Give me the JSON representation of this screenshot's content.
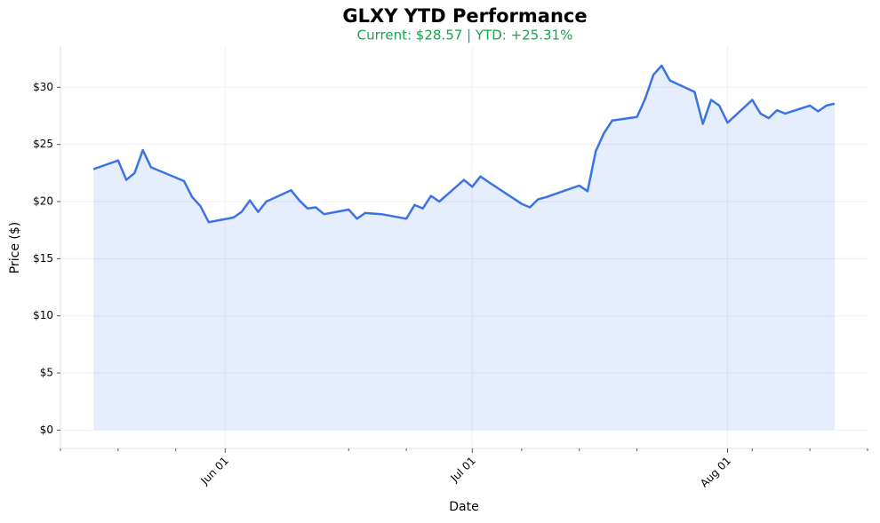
{
  "chart_data": {
    "type": "line",
    "title": "GLXY YTD Performance",
    "subtitle": "Current: $28.57  |  YTD: +25.31%",
    "x_label": "Date",
    "y_label": "Price ($)",
    "x": [
      "05-16",
      "05-19",
      "05-20",
      "05-21",
      "05-22",
      "05-23",
      "05-27",
      "05-28",
      "05-29",
      "05-30",
      "06-02",
      "06-03",
      "06-04",
      "06-05",
      "06-06",
      "06-09",
      "06-10",
      "06-11",
      "06-12",
      "06-13",
      "06-16",
      "06-17",
      "06-18",
      "06-20",
      "06-23",
      "06-24",
      "06-25",
      "06-26",
      "06-27",
      "06-30",
      "07-01",
      "07-02",
      "07-03",
      "07-07",
      "07-08",
      "07-09",
      "07-10",
      "07-14",
      "07-15",
      "07-16",
      "07-17",
      "07-18",
      "07-21",
      "07-22",
      "07-23",
      "07-24",
      "07-25",
      "07-28",
      "07-29",
      "07-30",
      "07-31",
      "08-01",
      "08-04",
      "08-05",
      "08-06",
      "08-07",
      "08-08",
      "08-11",
      "08-12",
      "08-13",
      "08-14"
    ],
    "series": [
      {
        "name": "GLXY",
        "color": "#3b73e6",
        "values": [
          22.84,
          23.6,
          21.9,
          22.5,
          24.5,
          23.0,
          21.8,
          20.4,
          19.6,
          18.2,
          18.6,
          19.1,
          20.1,
          19.1,
          20.0,
          21.0,
          20.1,
          19.4,
          19.5,
          18.9,
          19.3,
          18.5,
          19.0,
          18.9,
          18.5,
          19.7,
          19.4,
          20.5,
          20.0,
          21.9,
          21.3,
          22.2,
          21.7,
          19.8,
          19.5,
          20.2,
          20.4,
          21.4,
          20.9,
          24.4,
          26.0,
          27.1,
          27.4,
          29.0,
          31.1,
          31.9,
          30.6,
          29.6,
          26.8,
          28.9,
          28.4,
          26.9,
          28.9,
          27.7,
          27.3,
          28.0,
          27.7,
          28.4,
          27.9,
          28.4,
          28.57
        ]
      }
    ],
    "fill": true,
    "xlim": [
      "05-12",
      "08-18"
    ],
    "xticks": [
      {
        "value": "06-01",
        "label": "Jun 01"
      },
      {
        "value": "07-01",
        "label": "Jul 01"
      },
      {
        "value": "08-01",
        "label": "Aug 01"
      }
    ],
    "xminorticks": [
      "05-12",
      "05-19",
      "05-26",
      "06-16",
      "06-23",
      "07-07",
      "07-14",
      "07-21",
      "08-04",
      "08-11",
      "08-18"
    ],
    "ylim": [
      -1.6,
      33.6
    ],
    "yticks": [
      {
        "value": 0,
        "label": "$0"
      },
      {
        "value": 5,
        "label": "$5"
      },
      {
        "value": 10,
        "label": "$10"
      },
      {
        "value": 15,
        "label": "$15"
      },
      {
        "value": 20,
        "label": "$20"
      },
      {
        "value": 25,
        "label": "$25"
      },
      {
        "value": 30,
        "label": "$30"
      }
    ],
    "grid": true
  }
}
